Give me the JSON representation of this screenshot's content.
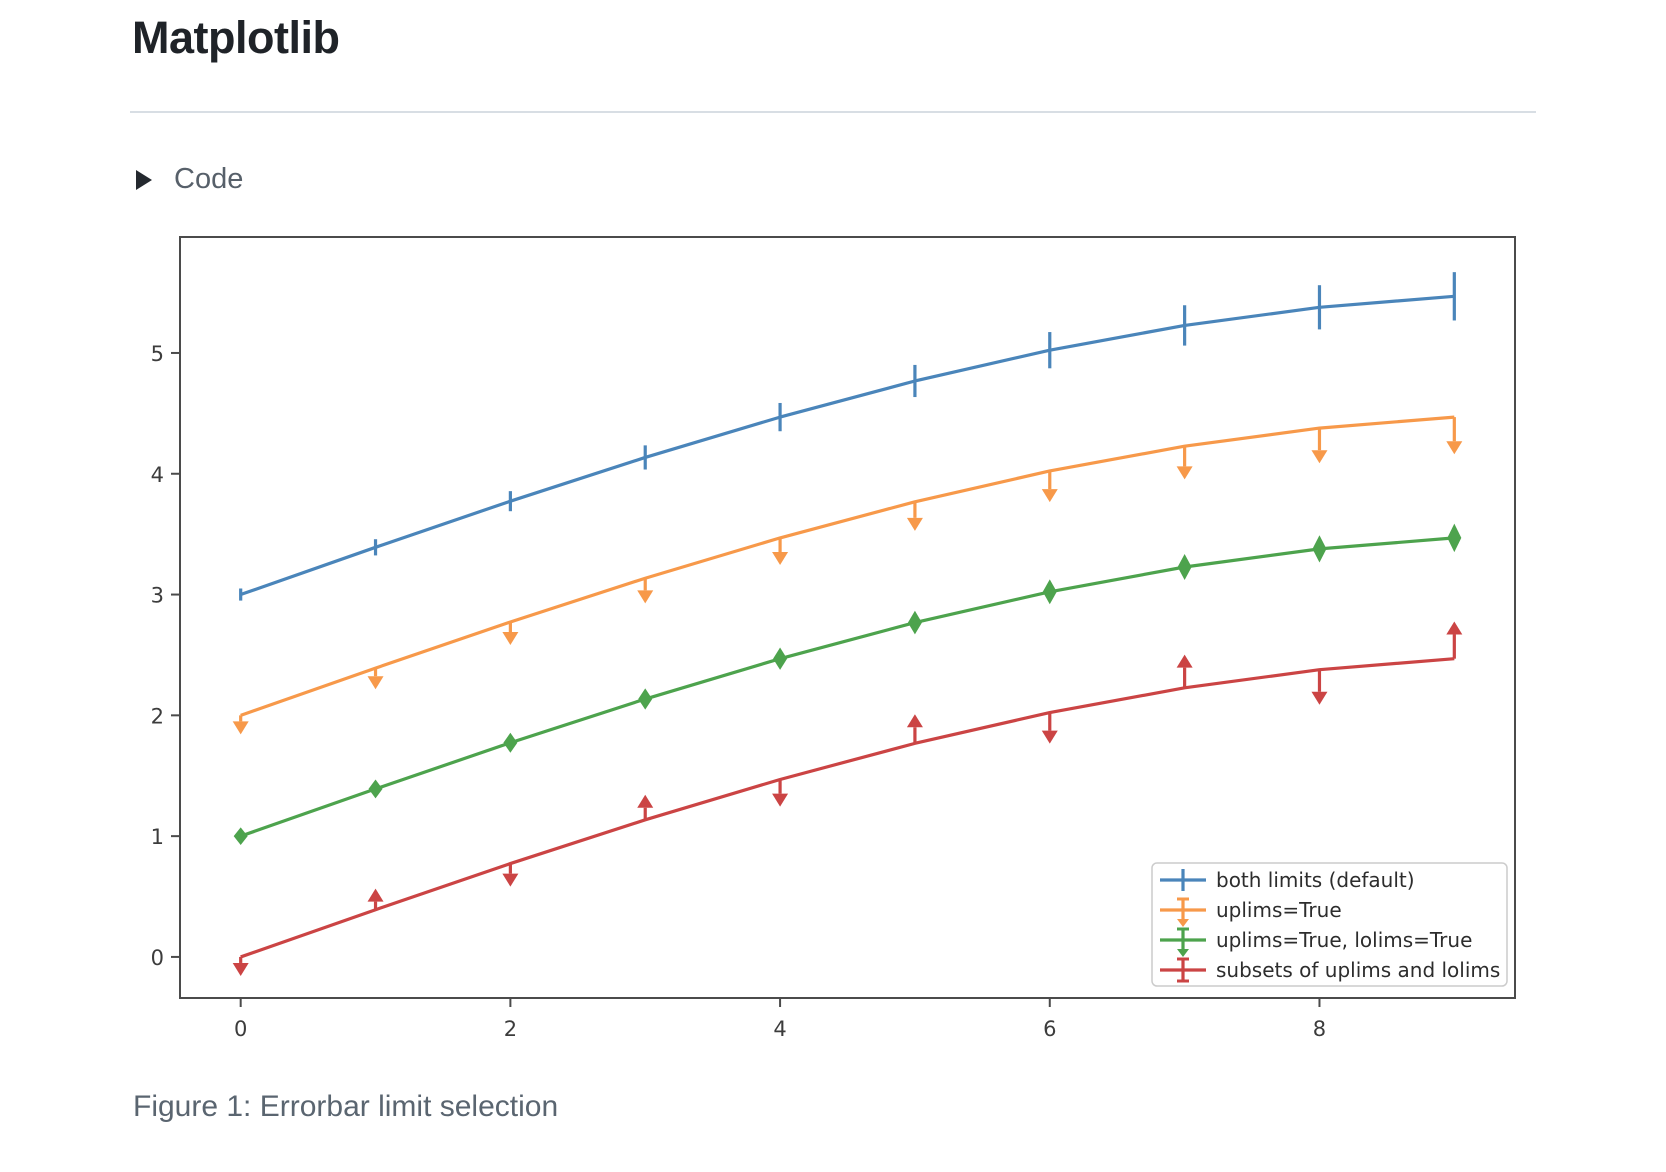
{
  "header": {
    "title": "Matplotlib"
  },
  "code_section": {
    "label": "Code",
    "icon": "triangle-right",
    "state": "collapsed"
  },
  "figure": {
    "caption": "Figure 1: Errorbar limit selection"
  },
  "colors": {
    "page_text": "#1f2328",
    "muted_text": "#57606a",
    "divider": "#d8dee4",
    "axis": "#4b4b4b",
    "tick_label": "#3c3c3c",
    "legend_border": "#cccccc",
    "legend_text": "#2d2d2d",
    "plot_background": "#ffffff"
  },
  "chart_data": {
    "type": "line",
    "title": "",
    "xlabel": "",
    "ylabel": "",
    "grid": false,
    "legend_position": "lower right",
    "x": [
      0,
      1,
      2,
      3,
      4,
      5,
      6,
      7,
      8,
      9
    ],
    "xticks": [
      0,
      2,
      4,
      6,
      8
    ],
    "yticks": [
      0,
      1,
      2,
      3,
      4,
      5
    ],
    "xlim": [
      -0.45,
      9.45
    ],
    "ylim": [
      -0.34,
      5.96
    ],
    "yerr": [
      0.05,
      0.067,
      0.083,
      0.1,
      0.117,
      0.133,
      0.15,
      0.167,
      0.183,
      0.2
    ],
    "series": [
      {
        "id": "both-limits",
        "name": "both limits (default)",
        "color": "#4a85ba",
        "errorbar_style": "both",
        "values": [
          3.0,
          3.391,
          3.773,
          4.135,
          4.469,
          4.768,
          5.023,
          5.228,
          5.378,
          5.469
        ]
      },
      {
        "id": "uplims",
        "name": "uplims=True",
        "color": "#f7994a",
        "errorbar_style": "uplims",
        "values": [
          2.0,
          2.391,
          2.773,
          3.135,
          3.469,
          3.768,
          4.023,
          4.228,
          4.378,
          4.469
        ]
      },
      {
        "id": "uplims-lolims",
        "name": "uplims=True, lolims=True",
        "color": "#4da34d",
        "errorbar_style": "uplims_lolims",
        "values": [
          1.0,
          1.391,
          1.773,
          2.135,
          2.469,
          2.768,
          3.023,
          3.228,
          3.378,
          3.469
        ]
      },
      {
        "id": "subsets",
        "name": "subsets of uplims and lolims",
        "color": "#cb4444",
        "errorbar_style": "alternating",
        "uplims": [
          true,
          false,
          true,
          false,
          true,
          false,
          true,
          false,
          true,
          false
        ],
        "lolims": [
          false,
          true,
          false,
          true,
          false,
          true,
          false,
          true,
          false,
          true
        ],
        "values": [
          0.0,
          0.391,
          0.773,
          1.135,
          1.469,
          1.768,
          2.023,
          2.228,
          2.378,
          2.469
        ]
      }
    ]
  }
}
